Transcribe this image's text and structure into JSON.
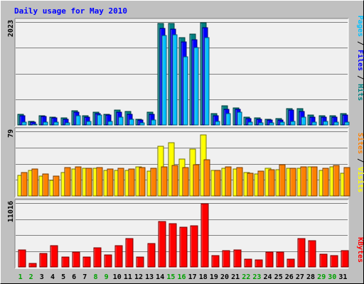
{
  "chart_data": {
    "title": "Daily usage for May 2010",
    "days": [
      "1",
      "2",
      "3",
      "4",
      "5",
      "6",
      "7",
      "8",
      "9",
      "10",
      "11",
      "12",
      "13",
      "14",
      "15",
      "16",
      "17",
      "18",
      "19",
      "20",
      "21",
      "22",
      "23",
      "24",
      "25",
      "26",
      "27",
      "28",
      "29",
      "30",
      "31"
    ],
    "weekend_days": [
      "1",
      "2",
      "8",
      "9",
      "15",
      "16",
      "22",
      "23",
      "29",
      "30"
    ],
    "panels": [
      {
        "type": "bar",
        "max_label": "2023",
        "ylim": [
          0,
          2023
        ],
        "legend": [
          "Pages",
          "Files",
          "Hits"
        ],
        "series": [
          {
            "name": "Hits",
            "color": "#008080",
            "values": [
              205,
              75,
              180,
              155,
              140,
              285,
              180,
              250,
              215,
              290,
              265,
              115,
              245,
              2000,
              2000,
              1710,
              1790,
              2010,
              225,
              370,
              335,
              155,
              135,
              115,
              130,
              325,
              315,
              190,
              180,
              175,
              230
            ]
          },
          {
            "name": "Files",
            "color": "#0000ff",
            "values": [
              175,
              55,
              165,
              135,
              110,
              245,
              160,
              225,
              190,
              255,
              210,
              95,
              215,
              1900,
              1880,
              1630,
              1680,
              1910,
              180,
              310,
              300,
              125,
              110,
              95,
              100,
              290,
              265,
              160,
              150,
              150,
              200
            ]
          },
          {
            "name": "Pages",
            "color": "#00c0ff",
            "values": [
              60,
              20,
              60,
              55,
              45,
              185,
              75,
              190,
              75,
              155,
              110,
              40,
              100,
              1760,
              1770,
              1340,
              1520,
              1720,
              70,
              230,
              255,
              55,
              40,
              35,
              60,
              65,
              155,
              60,
              65,
              55,
              60
            ]
          }
        ]
      },
      {
        "type": "bar",
        "max_label": "79",
        "ylim": [
          0,
          79
        ],
        "legend": [
          "Sites",
          "Visits"
        ],
        "series": [
          {
            "name": "Visits",
            "color": "#ffff00",
            "values": [
              25,
              31,
              24,
              19,
              29,
              33,
              34,
              34,
              31,
              31,
              31,
              36,
              30,
              61,
              65,
              45,
              57,
              75,
              31,
              34,
              33,
              29,
              27,
              34,
              32,
              34,
              34,
              36,
              31,
              36,
              28
            ]
          },
          {
            "name": "Sites",
            "color": "#ff8000",
            "values": [
              29,
              33,
              27,
              24,
              35,
              36,
              34,
              35,
              33,
              34,
              33,
              35,
              34,
              36,
              37,
              35,
              38,
              44,
              31,
              36,
              35,
              28,
              30,
              32,
              38,
              34,
              36,
              36,
              34,
              37,
              35
            ]
          }
        ]
      },
      {
        "type": "bar",
        "max_label": "11016",
        "ylim": [
          0,
          11016
        ],
        "legend": [
          "KBytes"
        ],
        "series": [
          {
            "name": "KBytes",
            "color": "#ff0000",
            "values": [
              2950,
              585,
              2320,
              3680,
              1700,
              2620,
              1700,
              3250,
              2130,
              3620,
              4920,
              1700,
              3990,
              7860,
              7480,
              6870,
              7100,
              10940,
              1920,
              2780,
              2900,
              1400,
              1270,
              2620,
              2540,
              1360,
              4920,
              4560,
              2210,
              1970,
              2780
            ]
          }
        ]
      }
    ]
  },
  "colors": {
    "background": "#c0c0c0",
    "plot_background": "#f0f0f0",
    "grid": "#808080",
    "title": "#0000ff",
    "weekday_label": "#000000",
    "weekend_label": "#00a000",
    "legend_pages": "#00c0ff",
    "legend_files": "#0000ff",
    "legend_hits": "#008080",
    "legend_sites": "#ff8000",
    "legend_visits": "#ffff00",
    "legend_kbytes": "#ff0000",
    "legend_separator": "#000000"
  }
}
